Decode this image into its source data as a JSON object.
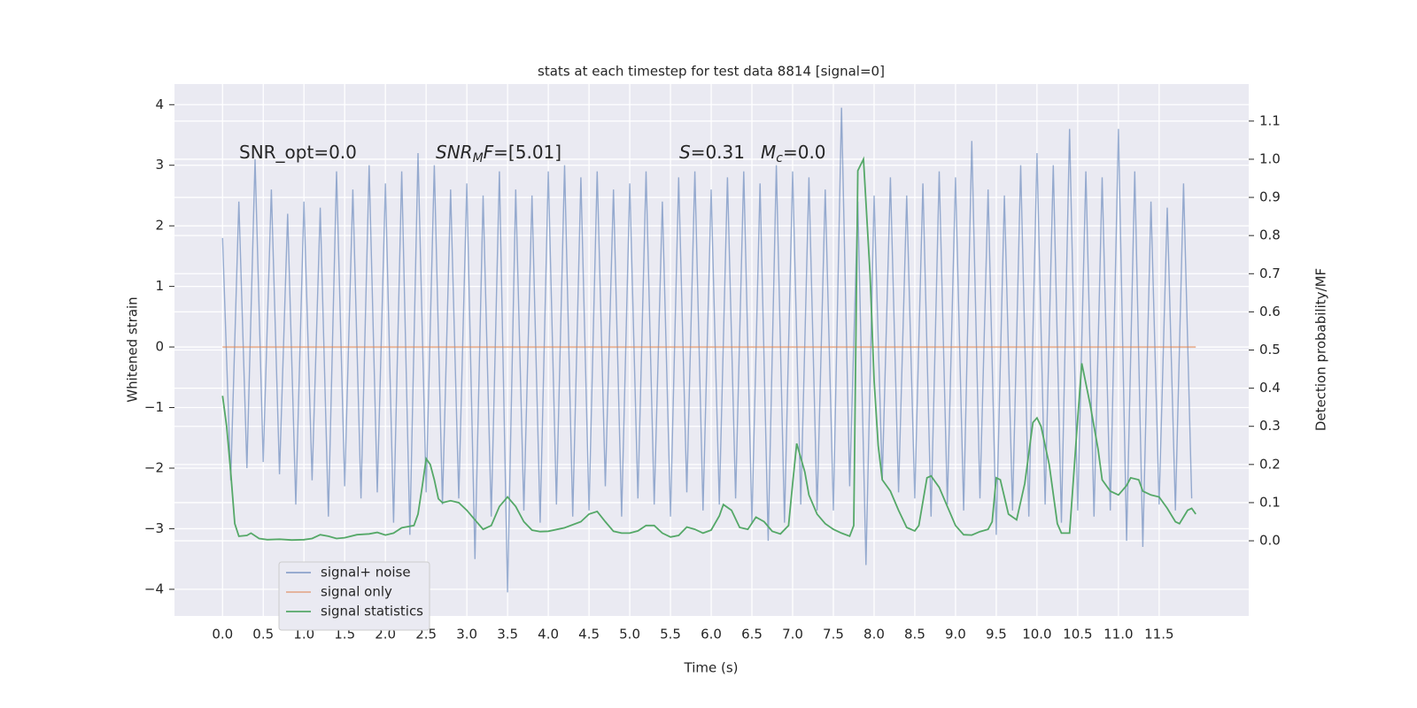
{
  "chart_data": {
    "type": "line",
    "title": "stats at each timestep for test data 8814 [signal=0]",
    "xlabel": "Time (s)",
    "ylabel": "Whitened strain",
    "y2label": "Detection probability/MF",
    "xlim": [
      -0.59,
      12.6
    ],
    "ylim": [
      -4.44,
      4.34
    ],
    "y2lim": [
      -0.197,
      1.197
    ],
    "grid": true,
    "legend": "lower left",
    "xticks": [
      {
        "value": 0,
        "label": "0.0"
      },
      {
        "value": 0.5,
        "label": "0.5"
      },
      {
        "value": 1,
        "label": "1.0"
      },
      {
        "value": 1.5,
        "label": "1.5"
      },
      {
        "value": 2,
        "label": "2.0"
      },
      {
        "value": 2.5,
        "label": "2.5"
      },
      {
        "value": 3,
        "label": "3.0"
      },
      {
        "value": 3.5,
        "label": "3.5"
      },
      {
        "value": 4,
        "label": "4.0"
      },
      {
        "value": 4.5,
        "label": "4.5"
      },
      {
        "value": 5,
        "label": "5.0"
      },
      {
        "value": 5.5,
        "label": "5.5"
      },
      {
        "value": 6,
        "label": "6.0"
      },
      {
        "value": 6.5,
        "label": "6.5"
      },
      {
        "value": 7,
        "label": "7.0"
      },
      {
        "value": 7.5,
        "label": "7.5"
      },
      {
        "value": 8,
        "label": "8.0"
      },
      {
        "value": 8.5,
        "label": "8.5"
      },
      {
        "value": 9,
        "label": "9.0"
      },
      {
        "value": 9.5,
        "label": "9.5"
      },
      {
        "value": 10,
        "label": "10.0"
      },
      {
        "value": 10.5,
        "label": "10.5"
      },
      {
        "value": 11,
        "label": "11.0"
      },
      {
        "value": 11.5,
        "label": "11.5"
      }
    ],
    "yticks": [
      {
        "value": -4,
        "label": "−4"
      },
      {
        "value": -3,
        "label": "−3"
      },
      {
        "value": -2,
        "label": "−2"
      },
      {
        "value": -1,
        "label": "−1"
      },
      0,
      1,
      2,
      3,
      4
    ],
    "y2ticks": [
      {
        "value": 0,
        "label": "0.0"
      },
      {
        "value": 0.1,
        "label": "0.1"
      },
      {
        "value": 0.2,
        "label": "0.2"
      },
      {
        "value": 0.3,
        "label": "0.3"
      },
      {
        "value": 0.4,
        "label": "0.4"
      },
      {
        "value": 0.5,
        "label": "0.5"
      },
      {
        "value": 0.6,
        "label": "0.6"
      },
      {
        "value": 0.7,
        "label": "0.7"
      },
      {
        "value": 0.8,
        "label": "0.8"
      },
      {
        "value": 0.9,
        "label": "0.9"
      },
      {
        "value": 1,
        "label": "1.0"
      },
      {
        "value": 1.1,
        "label": "1.1"
      }
    ],
    "annotations": [
      {
        "parts": [
          {
            "text": "SNR_opt=0.0",
            "style": "normal"
          }
        ]
      },
      {
        "parts": [
          {
            "text": "SNR",
            "style": "italic"
          },
          {
            "text": "M",
            "style": "sub"
          },
          {
            "text": "F",
            "style": "italic"
          },
          {
            "text": "=[5.01]",
            "style": "normal"
          }
        ]
      },
      {
        "parts": [
          {
            "text": "S",
            "style": "italic"
          },
          {
            "text": "=0.31",
            "style": "normal"
          }
        ]
      },
      {
        "parts": [
          {
            "text": "M",
            "style": "italic"
          },
          {
            "text": "c",
            "style": "sub"
          },
          {
            "text": "=0.0",
            "style": "normal"
          }
        ]
      }
    ],
    "series": [
      {
        "name": "signal+ noise",
        "color": "#4c72b0",
        "x": [
          0,
          0.1,
          0.2,
          0.3,
          0.4,
          0.5,
          0.6,
          0.7,
          0.8,
          0.9,
          1,
          1.1,
          1.2,
          1.3,
          1.4,
          1.5,
          1.6,
          1.7,
          1.8,
          1.9,
          2,
          2.1,
          2.2,
          2.3,
          2.4,
          2.5,
          2.6,
          2.7,
          2.8,
          2.9,
          3,
          3.1,
          3.2,
          3.3,
          3.4,
          3.5,
          3.6,
          3.7,
          3.8,
          3.9,
          4,
          4.1,
          4.2,
          4.3,
          4.4,
          4.5,
          4.6,
          4.7,
          4.8,
          4.9,
          5,
          5.1,
          5.2,
          5.3,
          5.4,
          5.5,
          5.6,
          5.7,
          5.8,
          5.9,
          6,
          6.1,
          6.2,
          6.3,
          6.4,
          6.5,
          6.6,
          6.7,
          6.8,
          6.9,
          7,
          7.1,
          7.2,
          7.3,
          7.4,
          7.5,
          7.6,
          7.7,
          7.8,
          7.9,
          8,
          8.1,
          8.2,
          8.3,
          8.4,
          8.5,
          8.6,
          8.7,
          8.8,
          8.9,
          9,
          9.1,
          9.2,
          9.3,
          9.4,
          9.5,
          9.6,
          9.7,
          9.8,
          9.9,
          10,
          10.1,
          10.2,
          10.3,
          10.4,
          10.5,
          10.6,
          10.7,
          10.8,
          10.9,
          11,
          11.1,
          11.2,
          11.3,
          11.4,
          11.5,
          11.6,
          11.7,
          11.8,
          11.9
        ],
        "values": [
          1.8,
          -2.2,
          2.4,
          -2.0,
          3.1,
          -1.9,
          2.6,
          -2.1,
          2.2,
          -2.6,
          2.4,
          -2.2,
          2.3,
          -2.8,
          2.9,
          -2.3,
          2.6,
          -2.5,
          3.0,
          -2.4,
          2.7,
          -2.9,
          2.9,
          -3.1,
          3.2,
          -2.4,
          3.0,
          -2.6,
          2.6,
          -2.5,
          2.7,
          -3.5,
          2.5,
          -2.8,
          2.9,
          -4.05,
          2.6,
          -2.7,
          2.5,
          -2.9,
          2.9,
          -2.6,
          3.0,
          -2.8,
          2.8,
          -2.7,
          2.9,
          -2.3,
          2.6,
          -2.8,
          2.7,
          -2.5,
          2.9,
          -2.6,
          2.4,
          -2.8,
          2.8,
          -2.4,
          2.9,
          -2.7,
          2.6,
          -2.6,
          2.8,
          -2.5,
          2.9,
          -2.9,
          2.7,
          -3.2,
          3.0,
          -2.9,
          2.9,
          -2.6,
          2.8,
          -2.7,
          2.6,
          -2.7,
          3.95,
          -2.3,
          2.4,
          -3.6,
          2.5,
          -2.2,
          2.8,
          -2.4,
          2.5,
          -2.5,
          2.7,
          -2.8,
          2.9,
          -2.6,
          2.8,
          -2.7,
          3.4,
          -2.5,
          2.6,
          -3.1,
          2.5,
          -2.7,
          3.0,
          -2.8,
          3.2,
          -2.6,
          3.0,
          -2.9,
          3.6,
          -2.7,
          2.9,
          -2.8,
          2.8,
          -2.7,
          3.6,
          -3.2,
          2.9,
          -3.3,
          2.4,
          -2.6,
          2.3,
          -2.7,
          2.7,
          -2.5
        ]
      },
      {
        "name": "signal only",
        "color": "#dd8452",
        "x": [
          0,
          11.95
        ],
        "values": [
          0,
          0
        ]
      },
      {
        "name": "signal statistics",
        "color": "#55a868",
        "axis": "y2",
        "x": [
          0,
          0.05,
          0.1,
          0.15,
          0.2,
          0.3,
          0.35,
          0.45,
          0.55,
          0.7,
          0.85,
          1,
          1.1,
          1.2,
          1.3,
          1.4,
          1.5,
          1.65,
          1.8,
          1.9,
          2,
          2.1,
          2.2,
          2.35,
          2.4,
          2.45,
          2.5,
          2.55,
          2.6,
          2.65,
          2.7,
          2.8,
          2.9,
          3,
          3.1,
          3.2,
          3.3,
          3.4,
          3.5,
          3.6,
          3.7,
          3.8,
          3.9,
          4,
          4.2,
          4.4,
          4.5,
          4.6,
          4.7,
          4.8,
          4.9,
          5,
          5.1,
          5.2,
          5.3,
          5.4,
          5.5,
          5.6,
          5.7,
          5.8,
          5.9,
          6,
          6.1,
          6.15,
          6.25,
          6.35,
          6.45,
          6.55,
          6.65,
          6.75,
          6.85,
          6.95,
          7,
          7.05,
          7.15,
          7.2,
          7.3,
          7.4,
          7.5,
          7.6,
          7.7,
          7.75,
          7.8,
          7.87,
          7.95,
          8,
          8.05,
          8.1,
          8.2,
          8.3,
          8.4,
          8.5,
          8.55,
          8.65,
          8.7,
          8.8,
          8.9,
          9,
          9.1,
          9.2,
          9.3,
          9.4,
          9.45,
          9.5,
          9.55,
          9.65,
          9.75,
          9.85,
          9.95,
          10,
          10.05,
          10.15,
          10.25,
          10.3,
          10.4,
          10.5,
          10.55,
          10.65,
          10.75,
          10.8,
          10.9,
          11,
          11.1,
          11.15,
          11.25,
          11.3,
          11.4,
          11.5,
          11.6,
          11.7,
          11.75,
          11.85,
          11.9,
          11.95
        ],
        "values": [
          0.38,
          0.3,
          0.18,
          0.045,
          0.012,
          0.014,
          0.02,
          0.006,
          0.003,
          0.004,
          0.002,
          0.003,
          0.006,
          0.016,
          0.012,
          0.006,
          0.008,
          0.016,
          0.018,
          0.022,
          0.015,
          0.02,
          0.034,
          0.04,
          0.07,
          0.14,
          0.215,
          0.2,
          0.16,
          0.11,
          0.1,
          0.105,
          0.1,
          0.08,
          0.055,
          0.03,
          0.04,
          0.09,
          0.115,
          0.09,
          0.05,
          0.028,
          0.024,
          0.025,
          0.034,
          0.05,
          0.07,
          0.077,
          0.05,
          0.025,
          0.02,
          0.02,
          0.026,
          0.04,
          0.04,
          0.02,
          0.01,
          0.014,
          0.036,
          0.03,
          0.02,
          0.028,
          0.065,
          0.095,
          0.08,
          0.035,
          0.03,
          0.062,
          0.05,
          0.025,
          0.018,
          0.04,
          0.15,
          0.255,
          0.18,
          0.12,
          0.07,
          0.045,
          0.03,
          0.02,
          0.012,
          0.04,
          0.97,
          1.0,
          0.7,
          0.42,
          0.25,
          0.16,
          0.13,
          0.08,
          0.035,
          0.026,
          0.04,
          0.165,
          0.17,
          0.14,
          0.09,
          0.04,
          0.016,
          0.015,
          0.024,
          0.03,
          0.05,
          0.165,
          0.16,
          0.07,
          0.055,
          0.15,
          0.31,
          0.322,
          0.3,
          0.2,
          0.045,
          0.02,
          0.02,
          0.32,
          0.465,
          0.36,
          0.24,
          0.16,
          0.13,
          0.12,
          0.145,
          0.165,
          0.16,
          0.13,
          0.12,
          0.115,
          0.085,
          0.05,
          0.045,
          0.08,
          0.085,
          0.07
        ]
      }
    ]
  }
}
